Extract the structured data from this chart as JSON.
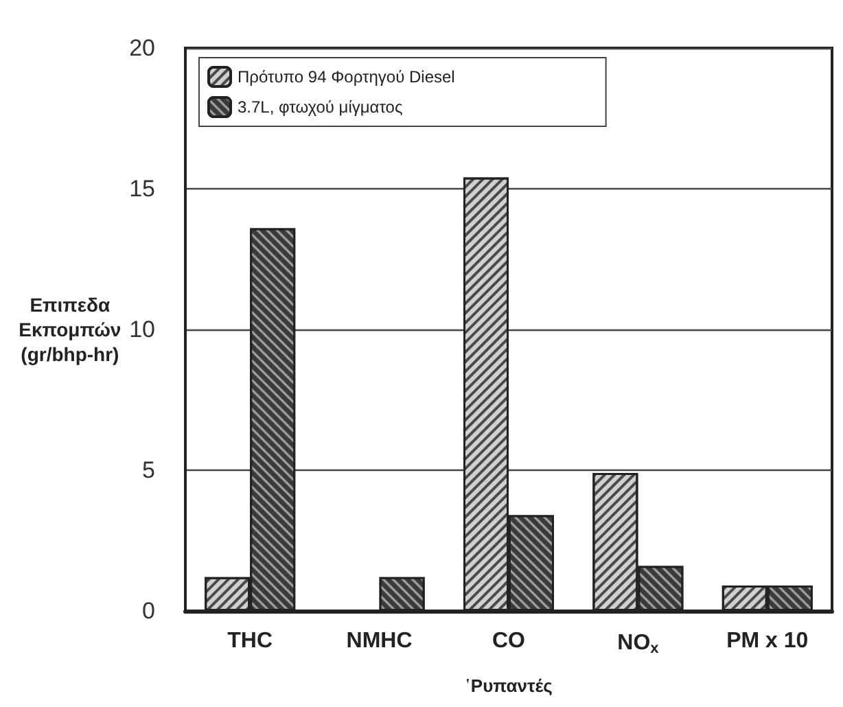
{
  "chart_data": {
    "type": "bar",
    "categories": [
      "THC",
      "NMHC",
      "CO",
      "NO$_{x}$",
      "PM x 10"
    ],
    "series": [
      {
        "name": "Πρότυπο 94 Φορτηγού Diesel",
        "color": "#d0d0d0",
        "values": [
          1.2,
          null,
          15.4,
          4.9,
          0.9
        ]
      },
      {
        "name": "3.7L, φτωχού μίγματος",
        "color": "#3a3a3a",
        "values": [
          13.6,
          1.2,
          3.4,
          1.6,
          0.9
        ]
      }
    ],
    "xlabel": "῾Ρυπαντές",
    "ylabel": "Επιπεδα\nΕκπομπών\n(gr/bhp-hr)",
    "ylim": [
      0,
      20
    ],
    "yticks": [
      0,
      5,
      10,
      15,
      20
    ],
    "grid": "y",
    "legend": "top left"
  }
}
